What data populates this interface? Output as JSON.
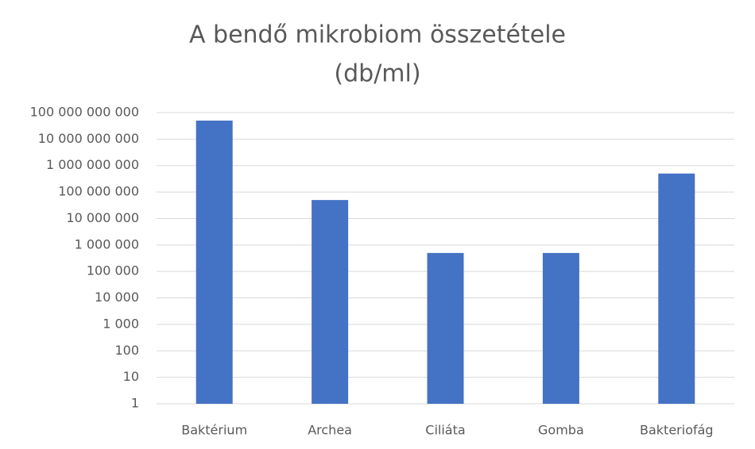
{
  "chart_data": {
    "type": "bar",
    "title": [
      "A bendő mikrobiom összetétele",
      "(db/ml)"
    ],
    "categories": [
      "Baktérium",
      "Archea",
      "Ciliáta",
      "Gomba",
      "Bakteriofág"
    ],
    "values": [
      50000000000,
      50000000,
      500000,
      500000,
      500000000
    ],
    "color": "#4472c4",
    "log_scale": true,
    "grid": true,
    "ylim": [
      1,
      100000000000
    ],
    "yticks": [
      1,
      10,
      100,
      {
        "value": 1000,
        "label": "1 000"
      },
      {
        "value": 10000,
        "label": "10 000"
      },
      {
        "value": 100000,
        "label": "100 000"
      },
      {
        "value": 1000000,
        "label": "1 000 000"
      },
      {
        "value": 10000000,
        "label": "10 000 000"
      },
      {
        "value": 100000000,
        "label": "100 000 000"
      },
      {
        "value": 1000000000,
        "label": "1 000 000 000"
      },
      {
        "value": 10000000000,
        "label": "10 000 000 000"
      },
      {
        "value": 100000000000,
        "label": "100 000 000 000"
      }
    ]
  }
}
